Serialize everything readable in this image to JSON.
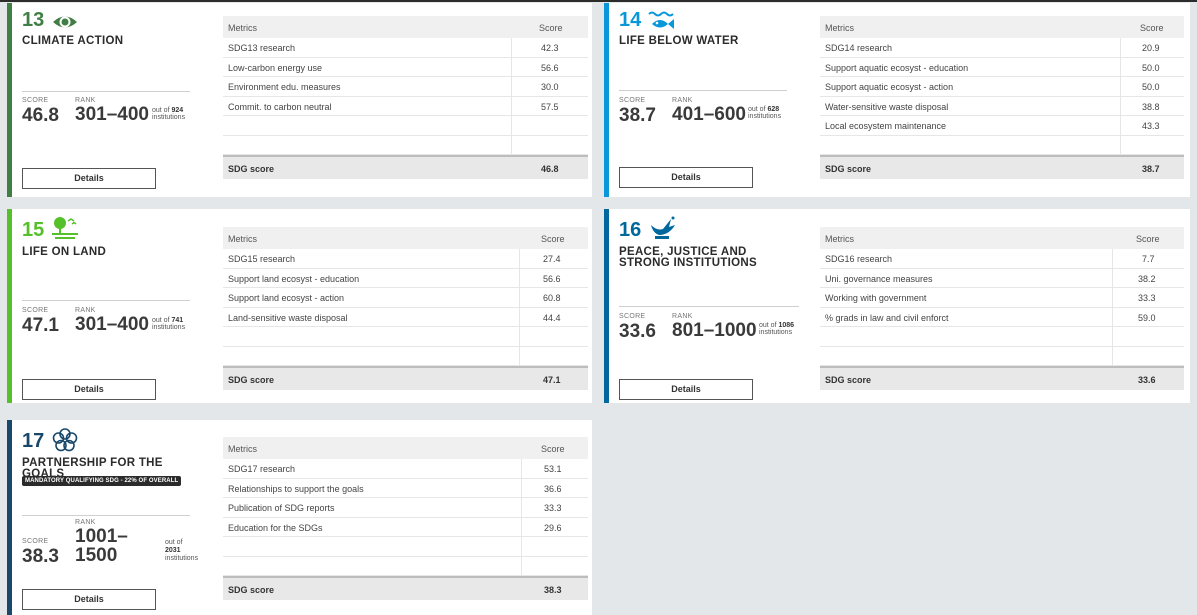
{
  "table_headers": {
    "metric": "Metrics",
    "score": "Score"
  },
  "labels": {
    "score": "SCORE",
    "rank": "RANK",
    "out_of": "out of",
    "institutions": "institutions",
    "details": "Details",
    "sdg_score": "SDG score"
  },
  "cards": [
    {
      "num": "13",
      "title": "CLIMATE ACTION",
      "color": "#3f7e44",
      "icon": "eye-globe-icon",
      "score": "46.8",
      "rank": "301–400",
      "out_of_count": "924",
      "metrics": [
        {
          "name": "SDG13 research",
          "score": "42.3"
        },
        {
          "name": "Low-carbon energy use",
          "score": "56.6"
        },
        {
          "name": "Environment edu. measures",
          "score": "30.0"
        },
        {
          "name": "Commit. to carbon neutral",
          "score": "57.5"
        }
      ],
      "sdg_score": "46.8"
    },
    {
      "num": "14",
      "title": "LIFE BELOW WATER",
      "color": "#0a97d9",
      "icon": "fish-waves-icon",
      "score": "38.7",
      "rank": "401–600",
      "out_of_count": "628",
      "metrics": [
        {
          "name": "SDG14 research",
          "score": "20.9"
        },
        {
          "name": "Support aquatic ecosyst - education",
          "score": "50.0"
        },
        {
          "name": "Support aquatic ecosyst - action",
          "score": "50.0"
        },
        {
          "name": "Water-sensitive waste disposal",
          "score": "38.8"
        },
        {
          "name": "Local ecosystem maintenance",
          "score": "43.3"
        }
      ],
      "sdg_score": "38.7"
    },
    {
      "num": "15",
      "title": "LIFE ON LAND",
      "color": "#56c02b",
      "icon": "tree-birds-icon",
      "score": "47.1",
      "rank": "301–400",
      "out_of_count": "741",
      "metrics": [
        {
          "name": "SDG15 research",
          "score": "27.4"
        },
        {
          "name": "Support land ecosyst - education",
          "score": "56.6"
        },
        {
          "name": "Support land ecosyst - action",
          "score": "60.8"
        },
        {
          "name": "Land-sensitive waste disposal",
          "score": "44.4"
        }
      ],
      "sdg_score": "47.1"
    },
    {
      "num": "16",
      "title": "PEACE, JUSTICE AND STRONG INSTITUTIONS",
      "color": "#00689d",
      "icon": "dove-gavel-icon",
      "score": "33.6",
      "rank": "801–1000",
      "out_of_count": "1086",
      "metrics": [
        {
          "name": "SDG16 research",
          "score": "7.7"
        },
        {
          "name": "Uni. governance measures",
          "score": "38.2"
        },
        {
          "name": "Working with government",
          "score": "33.3"
        },
        {
          "name": "% grads in law and civil enforct",
          "score": "59.0"
        }
      ],
      "sdg_score": "33.6"
    },
    {
      "num": "17",
      "title": "PARTNERSHIP FOR THE GOALS",
      "color": "#19486a",
      "icon": "flower-rings-icon",
      "badge": "MANDATORY QUALIFYING SDG - 22% OF OVERALL",
      "score": "38.3",
      "rank_line1": "1001–",
      "rank_line2": "1500",
      "out_of_count": "2031",
      "metrics": [
        {
          "name": "SDG17 research",
          "score": "53.1"
        },
        {
          "name": "Relationships to support the goals",
          "score": "36.6"
        },
        {
          "name": "Publication of SDG reports",
          "score": "33.3"
        },
        {
          "name": "Education for the SDGs",
          "score": "29.6"
        }
      ],
      "sdg_score": "38.3"
    }
  ]
}
